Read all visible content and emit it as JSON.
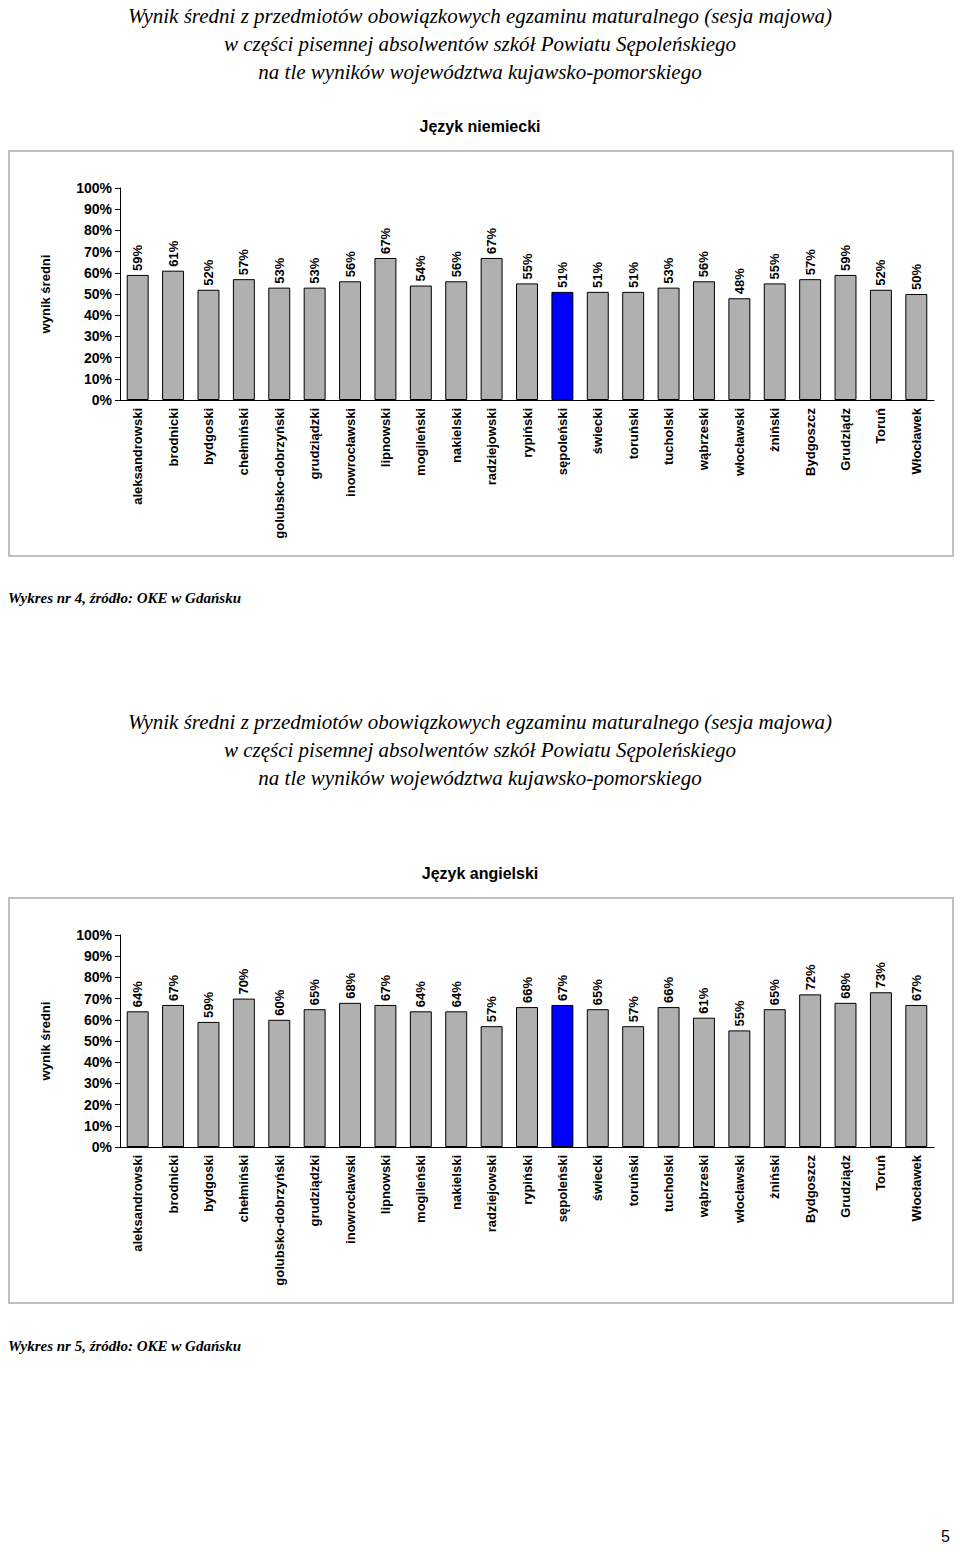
{
  "page": {
    "number": 5
  },
  "chart_data": [
    {
      "type": "bar",
      "heading": [
        "Wynik średni z przedmiotów obowiązkowych egzaminu maturalnego (sesja majowa)",
        "w części pisemnej absolwentów szkół Powiatu Sępoleńskiego",
        "na tle wyników województwa kujawsko-pomorskiego"
      ],
      "title": "Język niemiecki",
      "ylabel": "wynik średni",
      "caption": "Wykres nr 4, źródło: OKE w Gdańsku",
      "categories": [
        "aleksandrowski",
        "brodnicki",
        "bydgoski",
        "chełmiński",
        "golubsko-dobrzyński",
        "grudziądzki",
        "inowrocławski",
        "lipnowski",
        "mogileński",
        "nakielski",
        "radziejowski",
        "rypiński",
        "sępoleński",
        "świecki",
        "toruński",
        "tucholski",
        "wąbrzeski",
        "włocławski",
        "żniński",
        "Bydgoszcz",
        "Grudziądz",
        "Toruń",
        "Włocławek"
      ],
      "values": [
        59,
        61,
        52,
        57,
        53,
        53,
        56,
        67,
        54,
        56,
        67,
        55,
        51,
        51,
        51,
        53,
        56,
        48,
        55,
        57,
        59,
        52,
        50
      ],
      "value_labels": [
        "59%",
        "61%",
        "52%",
        "57%",
        "53%",
        "53%",
        "56%",
        "67%",
        "54%",
        "56%",
        "67%",
        "55%",
        "51%",
        "51%",
        "51%",
        "53%",
        "56%",
        "48%",
        "55%",
        "57%",
        "59%",
        "52%",
        "50%"
      ],
      "colors": [
        "#b0b0b0",
        "#b0b0b0",
        "#b0b0b0",
        "#b0b0b0",
        "#b0b0b0",
        "#b0b0b0",
        "#b0b0b0",
        "#b0b0b0",
        "#b0b0b0",
        "#b0b0b0",
        "#b0b0b0",
        "#b0b0b0",
        "#0000ff",
        "#b0b0b0",
        "#b0b0b0",
        "#b0b0b0",
        "#b0b0b0",
        "#b0b0b0",
        "#b0b0b0",
        "#b0b0b0",
        "#b0b0b0",
        "#b0b0b0",
        "#b0b0b0"
      ],
      "ylim": [
        0,
        100
      ],
      "yticks": [
        {
          "value": 0,
          "label": "0%"
        },
        {
          "value": 10,
          "label": "10%"
        },
        {
          "value": 20,
          "label": "20%"
        },
        {
          "value": 30,
          "label": "30%"
        },
        {
          "value": 40,
          "label": "40%"
        },
        {
          "value": 50,
          "label": "50%"
        },
        {
          "value": 60,
          "label": "60%"
        },
        {
          "value": 70,
          "label": "70%"
        },
        {
          "value": 80,
          "label": "80%"
        },
        {
          "value": 90,
          "label": "90%"
        },
        {
          "value": 100,
          "label": "100%"
        }
      ],
      "grid": false,
      "data_labels": true
    },
    {
      "type": "bar",
      "heading": [
        "Wynik średni z przedmiotów obowiązkowych egzaminu maturalnego (sesja majowa)",
        "w części pisemnej absolwentów szkół Powiatu Sępoleńskiego",
        "na tle wyników województwa kujawsko-pomorskiego"
      ],
      "title": "Język angielski",
      "ylabel": "wynik średni",
      "caption": "Wykres nr 5, źródło: OKE w Gdańsku",
      "categories": [
        "aleksandrowski",
        "brodnicki",
        "bydgoski",
        "chełmiński",
        "golubsko-dobrzyński",
        "grudziądzki",
        "inowrocławski",
        "lipnowski",
        "mogileński",
        "nakielski",
        "radziejowski",
        "rypiński",
        "sępoleński",
        "świecki",
        "toruński",
        "tucholski",
        "wąbrzeski",
        "włocławski",
        "żniński",
        "Bydgoszcz",
        "Grudziądz",
        "Toruń",
        "Włocławek"
      ],
      "values": [
        64,
        67,
        59,
        70,
        60,
        65,
        68,
        67,
        64,
        64,
        57,
        66,
        67,
        65,
        57,
        66,
        61,
        55,
        65,
        72,
        68,
        73,
        67
      ],
      "value_labels": [
        "64%",
        "67%",
        "59%",
        "70%",
        "60%",
        "65%",
        "68%",
        "67%",
        "64%",
        "64%",
        "57%",
        "66%",
        "67%",
        "65%",
        "57%",
        "66%",
        "61%",
        "55%",
        "65%",
        "72%",
        "68%",
        "73%",
        "67%"
      ],
      "colors": [
        "#b0b0b0",
        "#b0b0b0",
        "#b0b0b0",
        "#b0b0b0",
        "#b0b0b0",
        "#b0b0b0",
        "#b0b0b0",
        "#b0b0b0",
        "#b0b0b0",
        "#b0b0b0",
        "#b0b0b0",
        "#b0b0b0",
        "#0000ff",
        "#b0b0b0",
        "#b0b0b0",
        "#b0b0b0",
        "#b0b0b0",
        "#b0b0b0",
        "#b0b0b0",
        "#b0b0b0",
        "#b0b0b0",
        "#b0b0b0",
        "#b0b0b0"
      ],
      "ylim": [
        0,
        100
      ],
      "yticks": [
        {
          "value": 0,
          "label": "0%"
        },
        {
          "value": 10,
          "label": "10%"
        },
        {
          "value": 20,
          "label": "20%"
        },
        {
          "value": 30,
          "label": "30%"
        },
        {
          "value": 40,
          "label": "40%"
        },
        {
          "value": 50,
          "label": "50%"
        },
        {
          "value": 60,
          "label": "60%"
        },
        {
          "value": 70,
          "label": "70%"
        },
        {
          "value": 80,
          "label": "80%"
        },
        {
          "value": 90,
          "label": "90%"
        },
        {
          "value": 100,
          "label": "100%"
        }
      ],
      "grid": false,
      "data_labels": true
    }
  ]
}
